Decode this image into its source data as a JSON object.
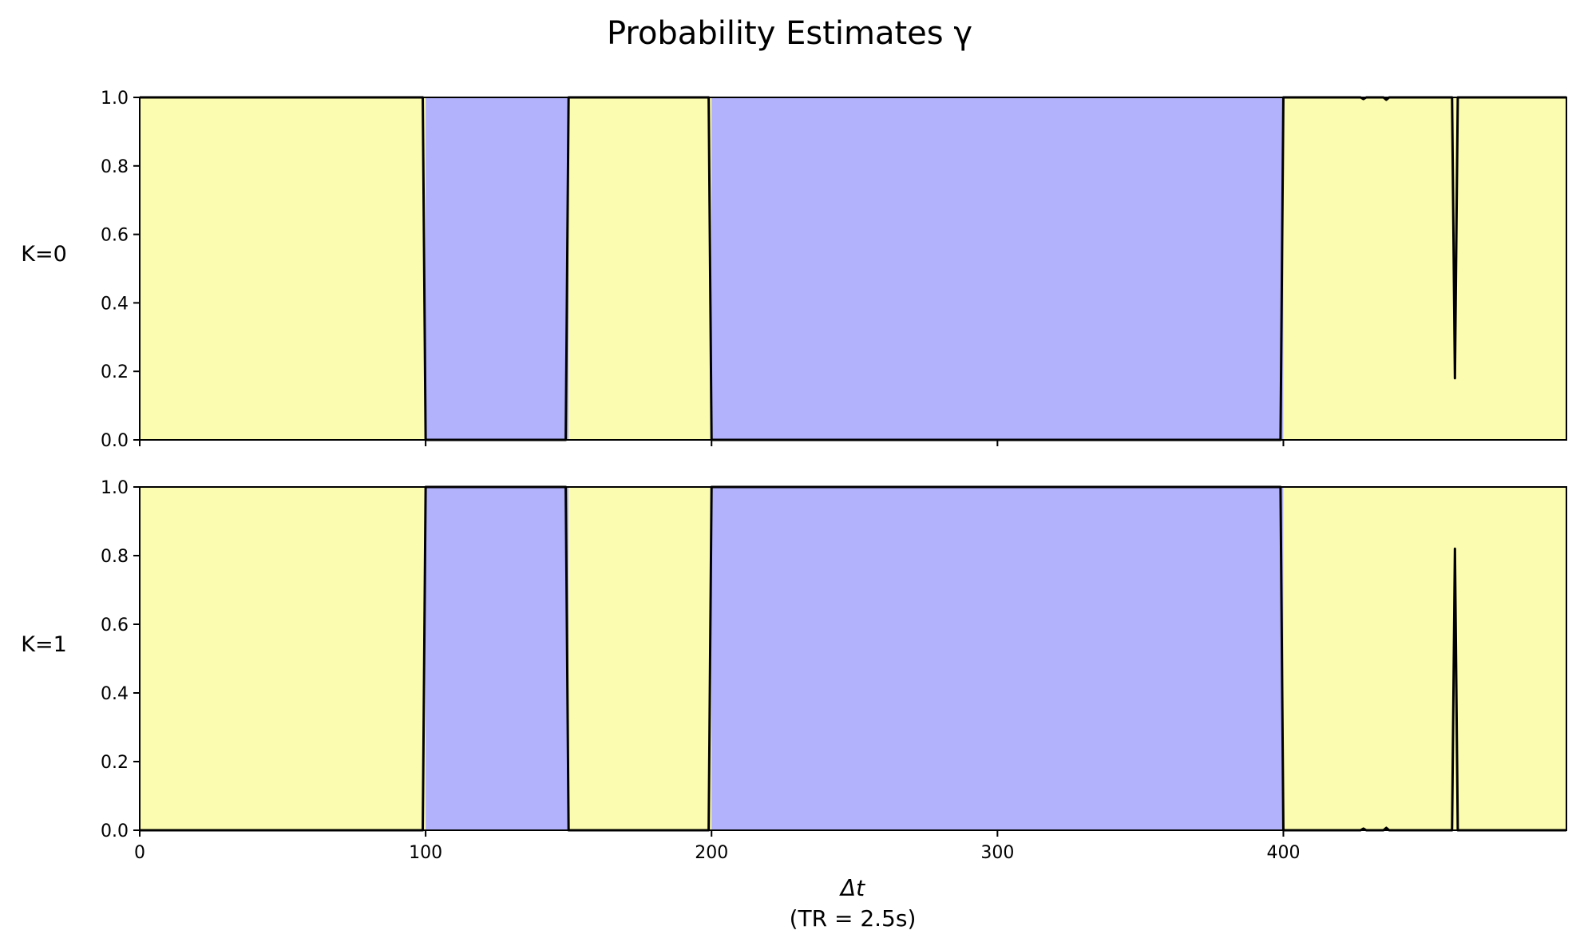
{
  "chart_data": {
    "type": "area",
    "title": "Probability Estimates γ",
    "xlabel_main": "Δt",
    "xlabel_sub": "(TR = 2.5s)",
    "xlim": [
      0,
      499
    ],
    "x_ticks": [
      0,
      100,
      200,
      300,
      400
    ],
    "ylim": [
      0,
      1
    ],
    "y_ticks": [
      "0.0",
      "0.2",
      "0.4",
      "0.6",
      "0.8",
      "1.0"
    ],
    "colors": {
      "state_0": "#fcfcb0",
      "state_1": "#b1b1fc",
      "line": "#000000"
    },
    "segments": [
      {
        "start": 0,
        "end": 100,
        "state": 0
      },
      {
        "start": 100,
        "end": 150,
        "state": 1
      },
      {
        "start": 150,
        "end": 200,
        "state": 0
      },
      {
        "start": 200,
        "end": 400,
        "state": 1
      },
      {
        "start": 400,
        "end": 499,
        "state": 0
      }
    ],
    "panels": [
      {
        "label": "K=0",
        "x": [
          0,
          99,
          100,
          149,
          150,
          199,
          200,
          399,
          400,
          427,
          428,
          429,
          435,
          436,
          437,
          459,
          460,
          461,
          499
        ],
        "y": [
          1,
          1,
          0,
          0,
          1,
          1,
          0,
          0,
          1,
          1,
          0.995,
          1,
          1,
          0.993,
          1,
          1,
          0.18,
          1,
          1
        ]
      },
      {
        "label": "K=1",
        "x": [
          0,
          99,
          100,
          149,
          150,
          199,
          200,
          399,
          400,
          427,
          428,
          429,
          435,
          436,
          437,
          459,
          460,
          461,
          499
        ],
        "y": [
          0,
          0,
          1,
          1,
          0,
          0,
          1,
          1,
          0,
          0,
          0.005,
          0,
          0,
          0.007,
          0,
          0,
          0.82,
          0,
          0
        ]
      }
    ]
  }
}
